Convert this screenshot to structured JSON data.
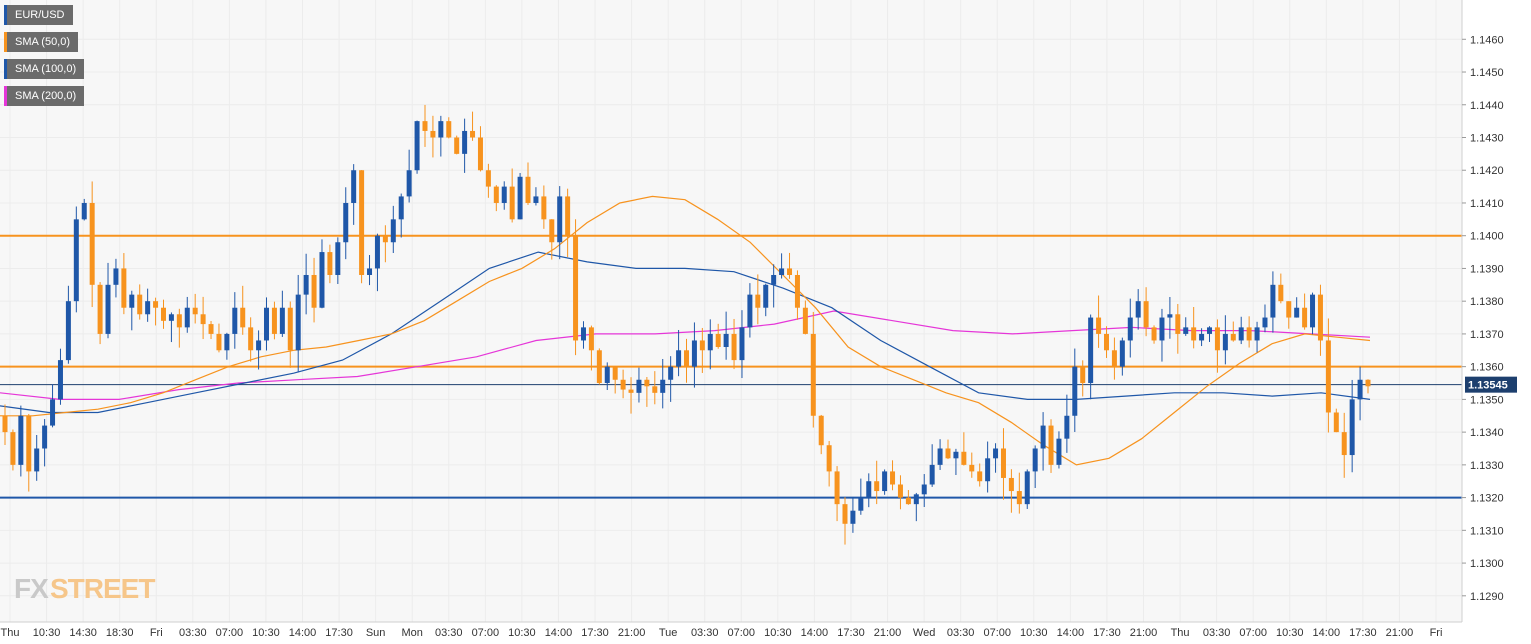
{
  "chart_data": {
    "type": "candlestick",
    "instrument": "EUR/USD",
    "legend": [
      {
        "label": "EUR/USD",
        "color": "#1f57a8"
      },
      {
        "label": "SMA (50,0)",
        "color": "#f7931e"
      },
      {
        "label": "SMA (100,0)",
        "color": "#1f57a8"
      },
      {
        "label": "SMA (200,0)",
        "color": "#e536d8"
      }
    ],
    "colors": {
      "up": "#1f57a8",
      "down": "#f7931e",
      "sma50": "#f7931e",
      "sma100": "#1f57a8",
      "sma200": "#e536d8",
      "resistance": "#f7931e",
      "support": "#1f57a8",
      "last_price_tag": "#1d3f6e"
    },
    "y_range": [
      1.1282,
      1.1472
    ],
    "y_ticks": [
      "1.1290",
      "1.1300",
      "1.1310",
      "1.1320",
      "1.1330",
      "1.1340",
      "1.1350",
      "1.1360",
      "1.1370",
      "1.1380",
      "1.1390",
      "1.1400",
      "1.1410",
      "1.1420",
      "1.1430",
      "1.1440",
      "1.1450",
      "1.1460"
    ],
    "x_ticks": [
      "Thu",
      "10:30",
      "14:30",
      "18:30",
      "Fri",
      "03:30",
      "07:00",
      "10:30",
      "14:00",
      "17:30",
      "Sun",
      "Mon",
      "03:30",
      "07:00",
      "10:30",
      "14:00",
      "17:30",
      "21:00",
      "Tue",
      "03:30",
      "07:00",
      "10:30",
      "14:00",
      "17:30",
      "21:00",
      "Wed",
      "03:30",
      "07:00",
      "10:30",
      "14:00",
      "17:30",
      "21:00",
      "Thu",
      "03:30",
      "07:00",
      "10:30",
      "14:00",
      "17:30",
      "21:00",
      "Fri"
    ],
    "horizontal_levels": [
      {
        "value": 1.14,
        "kind": "resistance"
      },
      {
        "value": 1.136,
        "kind": "resistance"
      },
      {
        "value": 1.132,
        "kind": "support"
      }
    ],
    "last_price": 1.13545,
    "last_price_label": "1.13545",
    "close_series": [
      1.134,
      1.133,
      1.1345,
      1.1328,
      1.1335,
      1.1342,
      1.135,
      1.1362,
      1.138,
      1.1405,
      1.141,
      1.1385,
      1.137,
      1.1385,
      1.139,
      1.1378,
      1.1382,
      1.1376,
      1.138,
      1.1378,
      1.1374,
      1.1376,
      1.1372,
      1.1378,
      1.1376,
      1.1373,
      1.137,
      1.1365,
      1.137,
      1.1378,
      1.1372,
      1.1365,
      1.1368,
      1.1378,
      1.137,
      1.1378,
      1.1365,
      1.1382,
      1.1388,
      1.1378,
      1.1395,
      1.1388,
      1.1398,
      1.141,
      1.142,
      1.1388,
      1.139,
      1.14,
      1.1398,
      1.1405,
      1.1412,
      1.142,
      1.1435,
      1.1432,
      1.143,
      1.1435,
      1.143,
      1.1425,
      1.1432,
      1.143,
      1.142,
      1.1415,
      1.141,
      1.1415,
      1.1405,
      1.1418,
      1.141,
      1.1412,
      1.1405,
      1.1398,
      1.1412,
      1.14,
      1.1368,
      1.1372,
      1.1365,
      1.1355,
      1.136,
      1.1356,
      1.1353,
      1.1352,
      1.1356,
      1.1354,
      1.1352,
      1.1356,
      1.136,
      1.1365,
      1.136,
      1.1368,
      1.1365,
      1.137,
      1.1366,
      1.137,
      1.1362,
      1.1372,
      1.1382,
      1.1378,
      1.1385,
      1.1388,
      1.139,
      1.1388,
      1.1378,
      1.137,
      1.1345,
      1.1336,
      1.1328,
      1.1318,
      1.1312,
      1.1316,
      1.132,
      1.1325,
      1.1322,
      1.1328,
      1.1324,
      1.132,
      1.1318,
      1.1321,
      1.1324,
      1.133,
      1.1335,
      1.1332,
      1.1334,
      1.133,
      1.1328,
      1.1325,
      1.1332,
      1.1335,
      1.1326,
      1.1322,
      1.1318,
      1.1328,
      1.1335,
      1.1342,
      1.133,
      1.1338,
      1.1345,
      1.136,
      1.1355,
      1.1375,
      1.137,
      1.1365,
      1.136,
      1.1368,
      1.1375,
      1.138,
      1.1372,
      1.1368,
      1.1375,
      1.1376,
      1.137,
      1.1372,
      1.1368,
      1.137,
      1.1372,
      1.1365,
      1.137,
      1.1368,
      1.1372,
      1.1368,
      1.1372,
      1.1375,
      1.1385,
      1.138,
      1.1375,
      1.1378,
      1.1372,
      1.1382,
      1.1368,
      1.1346,
      1.134,
      1.1333,
      1.135,
      1.1356,
      1.1354
    ],
    "sma50_series": [
      1.1345,
      1.1345,
      1.1346,
      1.1347,
      1.1349,
      1.1352,
      1.1356,
      1.136,
      1.1363,
      1.1365,
      1.1366,
      1.1368,
      1.137,
      1.1374,
      1.138,
      1.1386,
      1.139,
      1.1396,
      1.1404,
      1.141,
      1.1412,
      1.1411,
      1.1405,
      1.1398,
      1.1388,
      1.1378,
      1.1366,
      1.136,
      1.1356,
      1.1352,
      1.1349,
      1.1343,
      1.1336,
      1.133,
      1.1332,
      1.1338,
      1.1346,
      1.1354,
      1.1361,
      1.1367,
      1.137,
      1.1369,
      1.1368
    ],
    "sma100_series": [
      1.1348,
      1.1346,
      1.1346,
      1.1349,
      1.1352,
      1.1355,
      1.1358,
      1.1362,
      1.137,
      1.138,
      1.139,
      1.1395,
      1.1392,
      1.139,
      1.139,
      1.1389,
      1.1384,
      1.1378,
      1.1368,
      1.136,
      1.1352,
      1.135,
      1.135,
      1.1351,
      1.1352,
      1.1352,
      1.1351,
      1.1352,
      1.135
    ],
    "sma200_series": [
      1.1352,
      1.135,
      1.135,
      1.1353,
      1.1355,
      1.1356,
      1.1357,
      1.136,
      1.1363,
      1.1368,
      1.137,
      1.137,
      1.1371,
      1.1373,
      1.1377,
      1.1374,
      1.1371,
      1.137,
      1.1371,
      1.1372,
      1.1371,
      1.1371,
      1.137,
      1.1369
    ],
    "watermark": "FXSTREET"
  }
}
